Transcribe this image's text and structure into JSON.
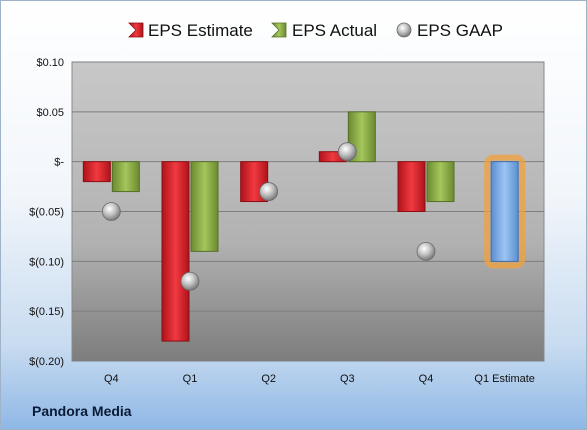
{
  "company": "Pandora Media",
  "chart_data": {
    "type": "bar",
    "categories": [
      "Q4",
      "Q1",
      "Q2",
      "Q3",
      "Q4",
      "Q1 Estimate"
    ],
    "series": [
      {
        "name": "EPS Estimate",
        "kind": "bar",
        "color": "#e0202a",
        "values": [
          -0.02,
          -0.18,
          -0.04,
          0.01,
          -0.05,
          null
        ]
      },
      {
        "name": "EPS Actual",
        "kind": "bar",
        "color": "#8db04a",
        "values": [
          -0.03,
          -0.09,
          null,
          0.05,
          -0.04,
          null
        ]
      },
      {
        "name": "EPS GAAP",
        "kind": "point",
        "color": "#b8b8b8",
        "values": [
          -0.05,
          -0.12,
          -0.03,
          0.01,
          -0.09,
          null
        ]
      },
      {
        "name": "Q1 Estimate",
        "kind": "highlight-bar",
        "color": "#7fb0e8",
        "glow": "#f3a13b",
        "values": [
          null,
          null,
          null,
          null,
          null,
          -0.1
        ]
      }
    ],
    "legend": [
      "EPS Estimate",
      "EPS Actual",
      "EPS GAAP"
    ],
    "legend_position": "top",
    "yticks": [
      "$0.10",
      "$0.05",
      "$-",
      "$(0.05)",
      "$(0.10)",
      "$(0.15)",
      "$(0.20)"
    ],
    "ylim": [
      -0.2,
      0.1
    ],
    "grid": true
  }
}
